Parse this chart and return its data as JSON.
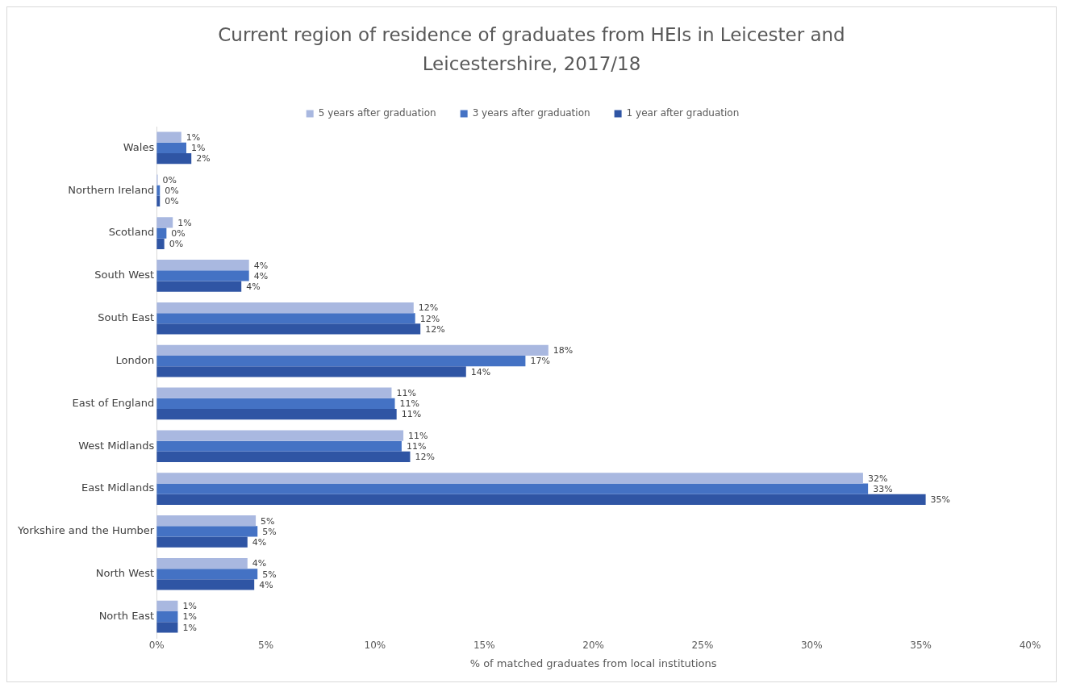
{
  "chart_data": {
    "type": "bar",
    "orientation": "horizontal",
    "title": "Current region of residence of graduates from HEIs in Leicester and Leicestershire, 2017/18",
    "xlabel": "% of matched graduates from local institutions",
    "categories": [
      "Wales",
      "Northern Ireland",
      "Scotland",
      "South West",
      "South East",
      "London",
      "East of England",
      "West Midlands",
      "East Midlands",
      "Yorkshire and the Humber",
      "North West",
      "North East"
    ],
    "series": [
      {
        "name": "5 years after graduation",
        "color": "#a9b8e0",
        "values": [
          1.13,
          0.05,
          0.74,
          4.23,
          11.77,
          17.94,
          10.76,
          11.3,
          32.35,
          4.54,
          4.16,
          0.97
        ],
        "value_labels": [
          "1%",
          "0%",
          "1%",
          "4%",
          "12%",
          "18%",
          "11%",
          "11%",
          "32%",
          "5%",
          "4%",
          "1%"
        ]
      },
      {
        "name": "3 years after graduation",
        "color": "#4472c4",
        "values": [
          1.36,
          0.15,
          0.45,
          4.23,
          11.84,
          16.89,
          10.91,
          11.22,
          32.58,
          4.62,
          4.62,
          0.97
        ],
        "value_labels": [
          "1%",
          "0%",
          "0%",
          "4%",
          "12%",
          "17%",
          "11%",
          "11%",
          "33%",
          "5%",
          "5%",
          "1%"
        ]
      },
      {
        "name": "1 year after graduation",
        "color": "#2f55a4",
        "values": [
          1.59,
          0.15,
          0.35,
          3.88,
          12.08,
          14.17,
          10.99,
          11.61,
          35.22,
          4.16,
          4.47,
          0.97
        ],
        "value_labels": [
          "2%",
          "0%",
          "0%",
          "4%",
          "12%",
          "14%",
          "11%",
          "12%",
          "35%",
          "4%",
          "4%",
          "1%"
        ]
      }
    ],
    "xlim": [
      0,
      40
    ],
    "xticks": [
      {
        "value": 0,
        "label": "0%"
      },
      {
        "value": 5,
        "label": "5%"
      },
      {
        "value": 10,
        "label": "10%"
      },
      {
        "value": 15,
        "label": "15%"
      },
      {
        "value": 20,
        "label": "20%"
      },
      {
        "value": 25,
        "label": "25%"
      },
      {
        "value": 30,
        "label": "30%"
      },
      {
        "value": 35,
        "label": "35%"
      },
      {
        "value": 40,
        "label": "40%"
      }
    ],
    "grid": false,
    "legend": "top"
  }
}
